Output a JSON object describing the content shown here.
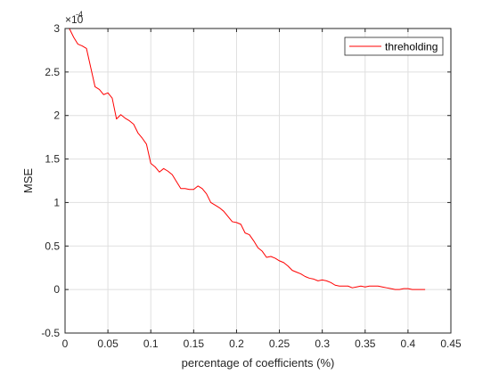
{
  "chart_data": {
    "type": "line",
    "xlabel": "percentage of coefficients (%)",
    "ylabel": "MSE",
    "y_exponent_label": "×10",
    "y_exponent_power": "-4",
    "xlim": [
      0,
      0.45
    ],
    "ylim": [
      -0.5,
      3
    ],
    "x_ticks": [
      0,
      0.05,
      0.1,
      0.15,
      0.2,
      0.25,
      0.3,
      0.35,
      0.4,
      0.45
    ],
    "x_tick_labels": [
      "0",
      "0.05",
      "0.1",
      "0.15",
      "0.2",
      "0.25",
      "0.3",
      "0.35",
      "0.4",
      "0.45"
    ],
    "y_ticks": [
      -0.5,
      0,
      0.5,
      1,
      1.5,
      2,
      2.5,
      3
    ],
    "y_tick_labels": [
      "-0.5",
      "0",
      "0.5",
      "1",
      "1.5",
      "2",
      "2.5",
      "3"
    ],
    "grid": true,
    "legend_position": "top-right",
    "series": [
      {
        "name": "threholding",
        "color": "#ff0000",
        "x": [
          0.005,
          0.01,
          0.015,
          0.02,
          0.025,
          0.03,
          0.035,
          0.04,
          0.045,
          0.05,
          0.055,
          0.06,
          0.065,
          0.07,
          0.075,
          0.08,
          0.085,
          0.09,
          0.095,
          0.1,
          0.105,
          0.11,
          0.115,
          0.12,
          0.125,
          0.13,
          0.135,
          0.14,
          0.145,
          0.15,
          0.155,
          0.16,
          0.165,
          0.17,
          0.175,
          0.18,
          0.185,
          0.19,
          0.195,
          0.2,
          0.205,
          0.21,
          0.215,
          0.22,
          0.225,
          0.23,
          0.235,
          0.24,
          0.245,
          0.25,
          0.255,
          0.26,
          0.265,
          0.27,
          0.275,
          0.28,
          0.285,
          0.29,
          0.295,
          0.3,
          0.305,
          0.31,
          0.315,
          0.32,
          0.325,
          0.33,
          0.335,
          0.34,
          0.345,
          0.35,
          0.355,
          0.36,
          0.365,
          0.37,
          0.375,
          0.38,
          0.385,
          0.39,
          0.395,
          0.4,
          0.405,
          0.41,
          0.415,
          0.42
        ],
        "values": [
          3.0,
          2.9,
          2.82,
          2.8,
          2.77,
          2.55,
          2.33,
          2.3,
          2.24,
          2.26,
          2.2,
          1.96,
          2.01,
          1.97,
          1.94,
          1.9,
          1.8,
          1.74,
          1.67,
          1.45,
          1.41,
          1.35,
          1.39,
          1.36,
          1.32,
          1.24,
          1.16,
          1.16,
          1.15,
          1.15,
          1.19,
          1.16,
          1.1,
          1.0,
          0.97,
          0.94,
          0.9,
          0.84,
          0.78,
          0.77,
          0.75,
          0.65,
          0.63,
          0.56,
          0.48,
          0.44,
          0.37,
          0.38,
          0.36,
          0.33,
          0.31,
          0.27,
          0.22,
          0.2,
          0.18,
          0.15,
          0.13,
          0.12,
          0.1,
          0.11,
          0.1,
          0.08,
          0.05,
          0.04,
          0.04,
          0.04,
          0.02,
          0.03,
          0.04,
          0.03,
          0.04,
          0.04,
          0.04,
          0.03,
          0.02,
          0.01,
          0.0,
          0.0,
          0.01,
          0.01,
          0.0,
          0.0,
          0.0,
          0.0
        ]
      }
    ]
  }
}
